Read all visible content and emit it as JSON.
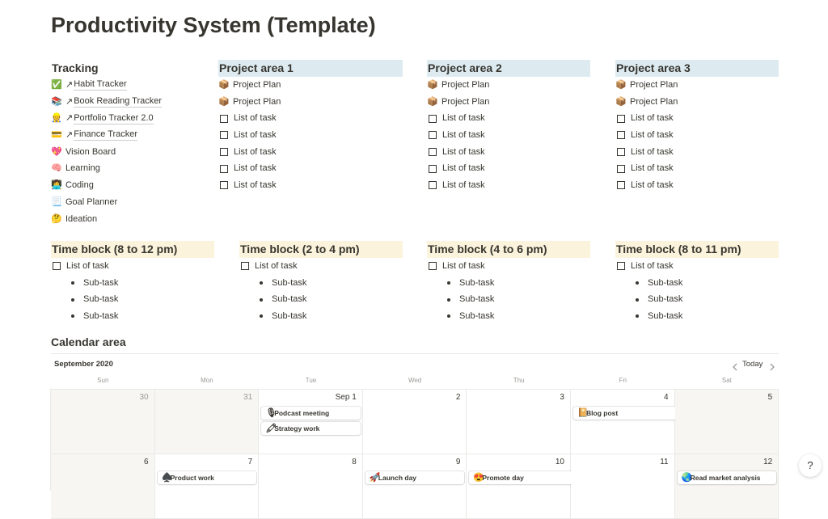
{
  "title": "Productivity System (Template)",
  "tracking": {
    "heading": "Tracking",
    "items": [
      {
        "icon": "✅",
        "arrow": "↗",
        "label": "Habit Tracker"
      },
      {
        "icon": "📚",
        "arrow": "↗",
        "label": "Book Reading Tracker"
      },
      {
        "icon": "👷",
        "arrow": "↗",
        "label": "Portfolio Tracker 2.0"
      },
      {
        "icon": "💳",
        "arrow": "↗",
        "label": "Finance Tracker"
      },
      {
        "icon": "💖",
        "label": "Vision Board"
      },
      {
        "icon": "🧠",
        "label": "Learning"
      },
      {
        "icon": "👩‍💻",
        "label": "Coding"
      },
      {
        "icon": "📃",
        "label": "Goal Planner"
      },
      {
        "icon": "🤔",
        "label": "Ideation"
      }
    ]
  },
  "project_areas": [
    {
      "heading": "Project area 1",
      "items": [
        {
          "icon": "📦",
          "label": "Project Plan"
        },
        {
          "icon": "📦",
          "label": "Project Plan"
        },
        {
          "checkbox": true,
          "label": "List of task"
        },
        {
          "checkbox": true,
          "label": "List of task"
        },
        {
          "checkbox": true,
          "label": "List of task"
        },
        {
          "checkbox": true,
          "label": "List of task"
        },
        {
          "checkbox": true,
          "label": "List of task"
        }
      ]
    },
    {
      "heading": "Project area 2",
      "items": [
        {
          "icon": "📦",
          "label": "Project Plan"
        },
        {
          "icon": "📦",
          "label": "Project Plan"
        },
        {
          "checkbox": true,
          "label": "List of task"
        },
        {
          "checkbox": true,
          "label": "List of task"
        },
        {
          "checkbox": true,
          "label": "List of task"
        },
        {
          "checkbox": true,
          "label": "List of task"
        },
        {
          "checkbox": true,
          "label": "List of task"
        }
      ]
    },
    {
      "heading": "Project area 3",
      "items": [
        {
          "icon": "📦",
          "label": "Project Plan"
        },
        {
          "icon": "📦",
          "label": "Project Plan"
        },
        {
          "checkbox": true,
          "label": "List of task"
        },
        {
          "checkbox": true,
          "label": "List of task"
        },
        {
          "checkbox": true,
          "label": "List of task"
        },
        {
          "checkbox": true,
          "label": "List of task"
        },
        {
          "checkbox": true,
          "label": "List of task"
        }
      ]
    }
  ],
  "time_blocks": [
    {
      "heading": "Time block (8 to 12 pm)",
      "task": "List of task",
      "subtasks": [
        "Sub-task",
        "Sub-task",
        "Sub-task"
      ]
    },
    {
      "heading": "Time block (2 to 4 pm)",
      "task": "List of task",
      "subtasks": [
        "Sub-task",
        "Sub-task",
        "Sub-task"
      ]
    },
    {
      "heading": "Time block (4 to 6 pm)",
      "task": "List of task",
      "subtasks": [
        "Sub-task",
        "Sub-task",
        "Sub-task"
      ]
    },
    {
      "heading": "Time block (8 to 11 pm)",
      "task": "List of task",
      "subtasks": [
        "Sub-task",
        "Sub-task",
        "Sub-task"
      ]
    }
  ],
  "calendar": {
    "heading": "Calendar area",
    "month": "September 2020",
    "today": "Today",
    "weekdays": [
      "Sun",
      "Mon",
      "Tue",
      "Wed",
      "Thu",
      "Fri",
      "Sat"
    ],
    "weeks": [
      [
        {
          "label": "30",
          "outside": true
        },
        {
          "label": "31",
          "outside": true
        },
        {
          "label": "Sep 1",
          "events": [
            {
              "icon": "🎙",
              "label": "Podcast meeting",
              "days": 1
            },
            {
              "icon": "🖍",
              "label": "Strategy work",
              "days": 1
            }
          ]
        },
        {
          "label": "2"
        },
        {
          "label": "3"
        },
        {
          "label": "4",
          "events": [
            {
              "icon": "📔",
              "label": "Blog post",
              "days": 2
            }
          ]
        },
        {
          "label": "5"
        }
      ],
      [
        {
          "label": "6"
        },
        {
          "label": "7",
          "events": [
            {
              "icon": "♠️",
              "label": "Product work",
              "days": 1
            }
          ]
        },
        {
          "label": "8"
        },
        {
          "label": "9",
          "events": [
            {
              "icon": "🚀",
              "label": "Launch day",
              "days": 1
            }
          ]
        },
        {
          "label": "10",
          "events": [
            {
              "icon": "😍",
              "label": "Promote day",
              "days": 2
            }
          ]
        },
        {
          "label": "11"
        },
        {
          "label": "12",
          "events": [
            {
              "icon": "🌏",
              "label": "Read market analysis",
              "days": 1
            }
          ]
        }
      ]
    ]
  },
  "help": "?"
}
